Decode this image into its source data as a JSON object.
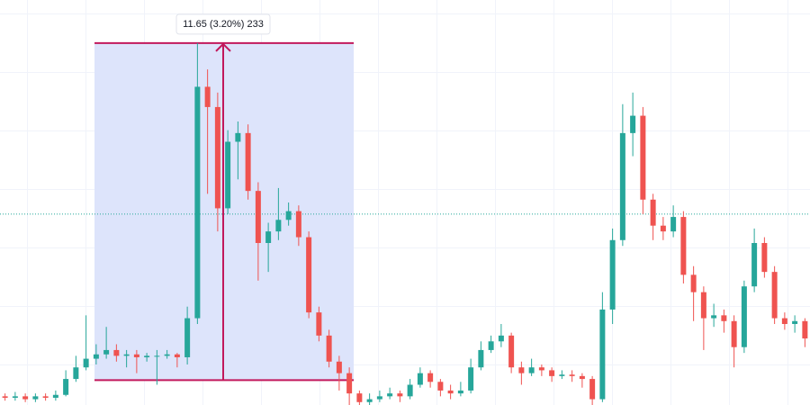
{
  "chart_data": {
    "type": "candlestick",
    "ylim": [
      363.2,
      377.2
    ],
    "up_color": "#26a69a",
    "down_color": "#ef5350",
    "price_line": 369.8,
    "price_line_color": "#26a69a",
    "measure": {
      "label": "11.65 (3.20%) 233",
      "from": 364.06,
      "to": 375.71,
      "color": "#c2185b",
      "fill": "#dde4fb"
    },
    "series": {
      "open": [
        363.5,
        363.45,
        363.5,
        363.4,
        363.5,
        363.45,
        363.55,
        364.1,
        364.5,
        364.8,
        364.95,
        365.1,
        364.9,
        364.95,
        364.85,
        364.9,
        364.9,
        364.95,
        364.85,
        366.2,
        374.2,
        373.5,
        370.0,
        372.3,
        372.6,
        370.6,
        368.8,
        369.2,
        369.6,
        369.9,
        369.0,
        366.4,
        365.6,
        364.7,
        364.3,
        363.6,
        363.3,
        363.4,
        363.5,
        363.6,
        363.5,
        363.9,
        364.3,
        364.0,
        363.7,
        363.6,
        363.7,
        364.5,
        365.1,
        365.4,
        365.6,
        364.5,
        364.3,
        364.5,
        364.4,
        364.2,
        364.25,
        364.2,
        364.1,
        363.4,
        366.5,
        368.9,
        372.6,
        373.2,
        370.3,
        369.4,
        369.2,
        369.7,
        367.7,
        367.1,
        366.2,
        366.3,
        366.1,
        365.2,
        367.3,
        368.8,
        367.8,
        366.2,
        366.0,
        366.1
      ],
      "high": [
        363.6,
        363.65,
        363.6,
        363.6,
        363.6,
        363.7,
        364.4,
        364.9,
        366.3,
        365.3,
        365.9,
        365.3,
        365.1,
        365.1,
        365.0,
        365.1,
        365.1,
        365.0,
        366.6,
        375.71,
        374.8,
        374.0,
        372.7,
        373.0,
        372.9,
        370.9,
        369.5,
        370.7,
        370.2,
        370.1,
        369.2,
        366.6,
        365.8,
        364.9,
        364.5,
        363.7,
        363.6,
        363.7,
        363.8,
        363.7,
        364.1,
        364.5,
        364.4,
        364.1,
        363.9,
        364.0,
        364.8,
        365.4,
        365.6,
        366.0,
        365.7,
        364.7,
        364.8,
        364.6,
        364.5,
        364.4,
        364.4,
        364.3,
        364.2,
        367.1,
        369.3,
        373.6,
        374.0,
        373.5,
        370.5,
        369.7,
        370.1,
        369.9,
        368.0,
        367.3,
        366.7,
        366.5,
        366.3,
        367.5,
        369.3,
        369.0,
        368.0,
        366.4,
        366.3,
        366.2
      ],
      "low": [
        363.35,
        363.35,
        363.3,
        363.3,
        363.35,
        363.35,
        363.5,
        364.0,
        364.4,
        364.6,
        364.8,
        364.7,
        364.5,
        364.3,
        364.7,
        363.9,
        364.8,
        364.5,
        364.6,
        366.0,
        370.5,
        369.2,
        369.8,
        371.0,
        370.3,
        367.5,
        367.8,
        368.9,
        369.4,
        368.7,
        366.2,
        365.4,
        364.5,
        363.7,
        363.2,
        363.2,
        363.2,
        363.3,
        363.4,
        363.3,
        363.4,
        363.8,
        363.8,
        363.5,
        363.4,
        363.5,
        363.6,
        364.4,
        365.0,
        365.2,
        364.3,
        363.9,
        364.2,
        364.2,
        364.0,
        364.1,
        364.0,
        363.8,
        363.2,
        363.3,
        366.0,
        368.7,
        371.8,
        369.8,
        368.9,
        368.9,
        369.0,
        367.4,
        366.1,
        365.1,
        365.9,
        365.7,
        364.5,
        365.0,
        367.1,
        367.6,
        366.0,
        365.8,
        365.7,
        365.2
      ],
      "close": [
        363.45,
        363.5,
        363.4,
        363.5,
        363.45,
        363.55,
        364.1,
        364.5,
        364.8,
        364.95,
        365.1,
        364.9,
        364.95,
        364.85,
        364.9,
        364.9,
        364.95,
        364.85,
        366.2,
        374.2,
        373.5,
        370.0,
        372.3,
        372.6,
        370.6,
        368.8,
        369.2,
        369.6,
        369.9,
        369.0,
        366.4,
        365.6,
        364.7,
        364.3,
        363.6,
        363.3,
        363.4,
        363.5,
        363.6,
        363.5,
        363.9,
        364.3,
        364.0,
        363.7,
        363.6,
        363.7,
        364.5,
        365.1,
        365.4,
        365.6,
        364.5,
        364.3,
        364.5,
        364.4,
        364.2,
        364.25,
        364.2,
        364.1,
        363.4,
        366.5,
        368.9,
        372.6,
        373.2,
        370.3,
        369.4,
        369.2,
        369.7,
        367.7,
        367.1,
        366.2,
        366.3,
        366.1,
        365.2,
        367.3,
        368.8,
        367.8,
        366.2,
        366.0,
        366.1,
        365.5
      ]
    }
  }
}
